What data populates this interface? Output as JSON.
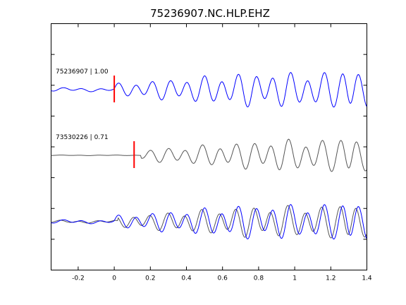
{
  "chart_data": {
    "type": "line",
    "title": "75236907.NC.HLP.EHZ",
    "xlabel": "",
    "ylabel": "",
    "xlim": [
      -0.35,
      1.4
    ],
    "x_ticks": [
      "-0.2",
      "0",
      "0.2",
      "0.4",
      "0.6",
      "0.8",
      "1",
      "1.2",
      "1.4"
    ],
    "x_tick_values": [
      -0.2,
      0,
      0.2,
      0.4,
      0.6,
      0.8,
      1,
      1.2,
      1.4
    ],
    "grid": false,
    "colors": {
      "reference": "#0000ff",
      "aligned": "#555555",
      "pick": "#ff0000"
    },
    "traces": [
      {
        "id": "trace-1",
        "label": "75236907 | 1.00",
        "color": "#0000ff",
        "pick_time": 0.0,
        "pre_amp": 0.07,
        "post_amp": 0.6,
        "peak_amp": 1.0,
        "phase": 0
      },
      {
        "id": "trace-2",
        "label": "73530226 | 0.71",
        "color": "#555555",
        "pick_time": 0.11,
        "pre_amp": 0.01,
        "post_amp": 0.55,
        "peak_amp": 0.95,
        "phase": 0.7
      },
      {
        "id": "trace-3-overlay",
        "label": "",
        "series": [
          "aligned",
          "reference"
        ],
        "pre_amp": 0.07,
        "post_amp": 0.6,
        "peak_amp": 1.0
      }
    ]
  }
}
